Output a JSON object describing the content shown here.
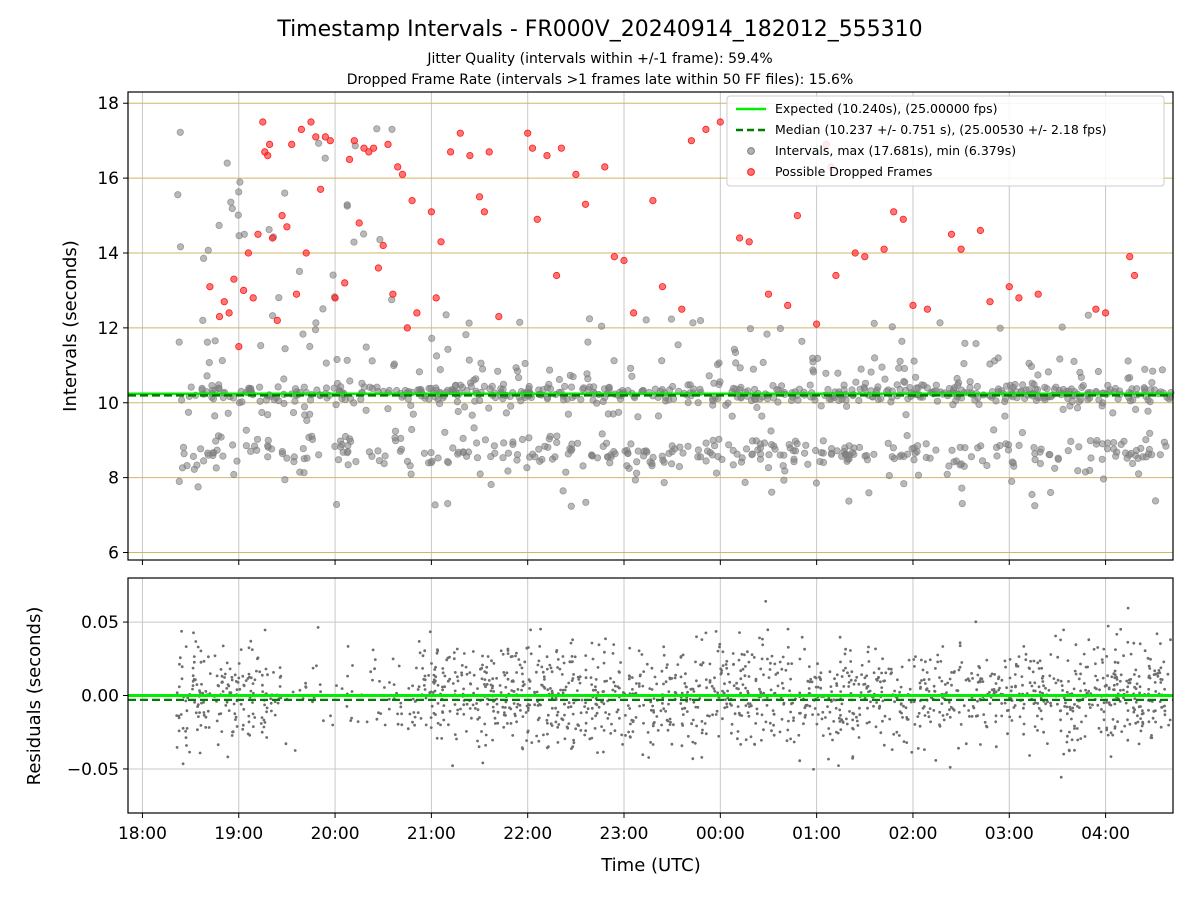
{
  "figure": {
    "title": "Timestamp Intervals - FR000V_20240914_182012_555310",
    "subtitle_1": "Jitter Quality (intervals within +/-1 frame): 59.4%",
    "subtitle_2": "Dropped Frame Rate (intervals >1 frames late within 50 FF files): 15.6%"
  },
  "chart_data": [
    {
      "type": "scatter",
      "xlabel": "",
      "ylabel": "Intervals (seconds)",
      "xlim_hours_utc": [
        17.85,
        28.7
      ],
      "ylim": [
        5.8,
        18.3
      ],
      "yticks": [
        6,
        8,
        10,
        12,
        14,
        16,
        18
      ],
      "grid": true,
      "legend_position": "top-right",
      "colors": {
        "expected": "#00ee00",
        "median": "#007a00",
        "intervals": "#7f7f7f",
        "dropped": "#ff1a1a",
        "ygrid": "#d2b56a",
        "xgrid": "#c8c8c8"
      },
      "expected_line": {
        "label": "Expected (10.240s), (25.00000 fps)",
        "y": 10.24
      },
      "median_line": {
        "label": "Median (10.237 +/- 0.751 s), (25.00530 +/- 2.18 fps)",
        "y": 10.237
      },
      "series": [
        {
          "name": "Intervals, max (17.681s), min (6.379s)",
          "max": 17.681,
          "min": 6.379
        },
        {
          "name": "Possible Dropped Frames",
          "points": [
            [
              18.7,
              13.1
            ],
            [
              18.8,
              12.3
            ],
            [
              18.85,
              12.7
            ],
            [
              18.9,
              12.4
            ],
            [
              18.95,
              13.3
            ],
            [
              19.0,
              11.5
            ],
            [
              19.05,
              13.0
            ],
            [
              19.1,
              14.0
            ],
            [
              19.15,
              12.8
            ],
            [
              19.2,
              14.5
            ],
            [
              19.25,
              17.5
            ],
            [
              19.27,
              16.7
            ],
            [
              19.3,
              16.6
            ],
            [
              19.32,
              16.9
            ],
            [
              19.35,
              14.4
            ],
            [
              19.4,
              12.2
            ],
            [
              19.45,
              15.0
            ],
            [
              19.5,
              14.7
            ],
            [
              19.55,
              16.9
            ],
            [
              19.6,
              12.9
            ],
            [
              19.65,
              17.3
            ],
            [
              19.7,
              14.0
            ],
            [
              19.75,
              17.5
            ],
            [
              19.8,
              17.1
            ],
            [
              19.85,
              15.7
            ],
            [
              19.9,
              17.1
            ],
            [
              19.95,
              17.0
            ],
            [
              20.0,
              12.8
            ],
            [
              20.1,
              13.2
            ],
            [
              20.15,
              16.5
            ],
            [
              20.2,
              17.0
            ],
            [
              20.25,
              14.8
            ],
            [
              20.3,
              16.8
            ],
            [
              20.35,
              16.7
            ],
            [
              20.4,
              16.8
            ],
            [
              20.45,
              13.6
            ],
            [
              20.5,
              14.2
            ],
            [
              20.55,
              16.9
            ],
            [
              20.6,
              12.9
            ],
            [
              20.65,
              16.3
            ],
            [
              20.7,
              16.1
            ],
            [
              20.75,
              12.0
            ],
            [
              20.8,
              15.4
            ],
            [
              20.85,
              12.4
            ],
            [
              21.0,
              15.1
            ],
            [
              21.05,
              12.8
            ],
            [
              21.1,
              14.3
            ],
            [
              21.2,
              16.7
            ],
            [
              21.3,
              17.2
            ],
            [
              21.4,
              16.6
            ],
            [
              21.5,
              15.5
            ],
            [
              21.55,
              15.1
            ],
            [
              21.6,
              16.7
            ],
            [
              21.7,
              12.3
            ],
            [
              22.0,
              17.2
            ],
            [
              22.05,
              16.8
            ],
            [
              22.1,
              14.9
            ],
            [
              22.2,
              16.6
            ],
            [
              22.3,
              13.4
            ],
            [
              22.35,
              16.8
            ],
            [
              22.5,
              16.1
            ],
            [
              22.6,
              15.3
            ],
            [
              22.8,
              16.3
            ],
            [
              22.9,
              13.9
            ],
            [
              23.0,
              13.8
            ],
            [
              23.1,
              12.4
            ],
            [
              23.3,
              15.4
            ],
            [
              23.4,
              13.1
            ],
            [
              23.6,
              12.5
            ],
            [
              23.7,
              17.0
            ],
            [
              23.85,
              17.3
            ],
            [
              24.0,
              17.5
            ],
            [
              24.2,
              14.4
            ],
            [
              24.3,
              14.3
            ],
            [
              24.5,
              12.9
            ],
            [
              24.7,
              12.6
            ],
            [
              24.8,
              15.0
            ],
            [
              25.0,
              12.1
            ],
            [
              25.1,
              16.9
            ],
            [
              25.15,
              16.3
            ],
            [
              25.2,
              13.4
            ],
            [
              25.4,
              14.0
            ],
            [
              25.5,
              13.9
            ],
            [
              25.7,
              14.1
            ],
            [
              25.8,
              15.1
            ],
            [
              25.9,
              14.9
            ],
            [
              26.0,
              12.6
            ],
            [
              26.15,
              12.5
            ],
            [
              26.4,
              14.5
            ],
            [
              26.5,
              14.1
            ],
            [
              26.7,
              14.6
            ],
            [
              26.8,
              12.7
            ],
            [
              27.0,
              13.1
            ],
            [
              27.1,
              12.8
            ],
            [
              27.3,
              12.9
            ],
            [
              27.9,
              12.5
            ],
            [
              28.0,
              12.4
            ],
            [
              28.25,
              13.9
            ],
            [
              28.3,
              13.4
            ]
          ]
        }
      ],
      "band_summary": "dense grey cloud around 8.6 s and 10.2 s from 18:20 to 04:40"
    },
    {
      "type": "scatter",
      "xlabel": "Time (UTC)",
      "ylabel": "Residuals (seconds)",
      "xlim_hours_utc": [
        17.85,
        28.7
      ],
      "ylim": [
        -0.08,
        0.08
      ],
      "yticks": [
        -0.05,
        0.0,
        0.05
      ],
      "yticklabels": [
        "−0.05",
        "0.00",
        "0.05"
      ],
      "xticks_hours": [
        18,
        19,
        20,
        21,
        22,
        23,
        24,
        25,
        26,
        27,
        28
      ],
      "xticklabels": [
        "18:00",
        "19:00",
        "20:00",
        "21:00",
        "22:00",
        "23:00",
        "00:00",
        "01:00",
        "02:00",
        "03:00",
        "04:00"
      ],
      "grid": true,
      "expected_line_y": 0.0,
      "median_line_y": -0.003,
      "series": [
        {
          "name": "Residuals",
          "spread_sd": 0.018,
          "color": "#6e6e6e"
        }
      ]
    }
  ]
}
